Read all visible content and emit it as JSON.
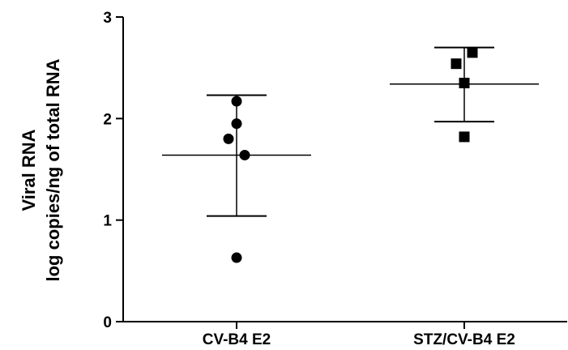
{
  "chart_data": {
    "type": "scatter",
    "title": "",
    "ylabel_lines": [
      "Viral RNA",
      "log copies/ng of total RNA"
    ],
    "xlabel": "",
    "categories": [
      "CV-B4 E2",
      "STZ/CV-B4 E2"
    ],
    "ylim": [
      0,
      3
    ],
    "yticks": [
      "0",
      "1",
      "2",
      "3"
    ],
    "grid": false,
    "legend": "none",
    "series": [
      {
        "category": "CV-B4 E2",
        "marker": "circle",
        "values": [
          2.17,
          1.95,
          1.8,
          1.64,
          0.63
        ],
        "mean": 1.64,
        "sd_upper": 2.23,
        "sd_lower": 1.04
      },
      {
        "category": "STZ/CV-B4 E2",
        "marker": "square",
        "values": [
          2.65,
          2.54,
          2.35,
          1.82
        ],
        "mean": 2.34,
        "sd_upper": 2.7,
        "sd_lower": 1.97
      }
    ],
    "colors": {
      "marks": "#000000",
      "axis": "#000000"
    }
  }
}
